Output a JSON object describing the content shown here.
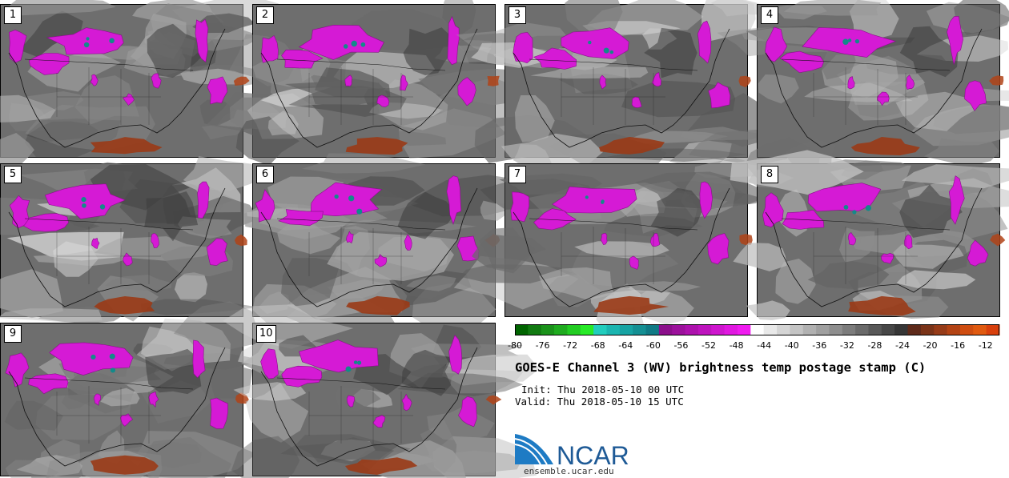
{
  "panels": [
    {
      "label": "1"
    },
    {
      "label": "2"
    },
    {
      "label": "3"
    },
    {
      "label": "4"
    },
    {
      "label": "5"
    },
    {
      "label": "6"
    },
    {
      "label": "7"
    },
    {
      "label": "8"
    },
    {
      "label": "9"
    },
    {
      "label": "10"
    }
  ],
  "colorbar": {
    "min": -80,
    "max": -10,
    "step": 2,
    "tick_labels": [
      "-80",
      "-76",
      "-72",
      "-68",
      "-64",
      "-60",
      "-56",
      "-52",
      "-48",
      "-44",
      "-40",
      "-36",
      "-32",
      "-28",
      "-24",
      "-20",
      "-16",
      "-12"
    ],
    "colors": [
      "#006400",
      "#117a11",
      "#1a921a",
      "#1fab1f",
      "#22cc22",
      "#27ea27",
      "#21cdbd",
      "#1bb5b0",
      "#17a3a3",
      "#148f93",
      "#107a85",
      "#8b0f8b",
      "#9c119c",
      "#ad12ad",
      "#be14be",
      "#ce16ce",
      "#e018e0",
      "#f01cf0",
      "#ffffff",
      "#e9e9e9",
      "#d5d5d5",
      "#c4c4c4",
      "#b1b1b1",
      "#a0a0a0",
      "#8e8e8e",
      "#7c7c7c",
      "#6a6a6a",
      "#585858",
      "#474747",
      "#363636",
      "#5e2a1a",
      "#7a3318",
      "#963b18",
      "#b34314",
      "#cf4d10",
      "#e05a10",
      "#d8400c"
    ]
  },
  "title": "GOES-E Channel 3 (WV) brightness temp postage stamp (C)",
  "init": "Init: Thu 2018-05-10 00 UTC",
  "valid": "Valid: Thu 2018-05-10 15 UTC",
  "logo": {
    "text": "NCAR",
    "color": "#1e5a96"
  },
  "website": "ensemble.ucar.edu"
}
